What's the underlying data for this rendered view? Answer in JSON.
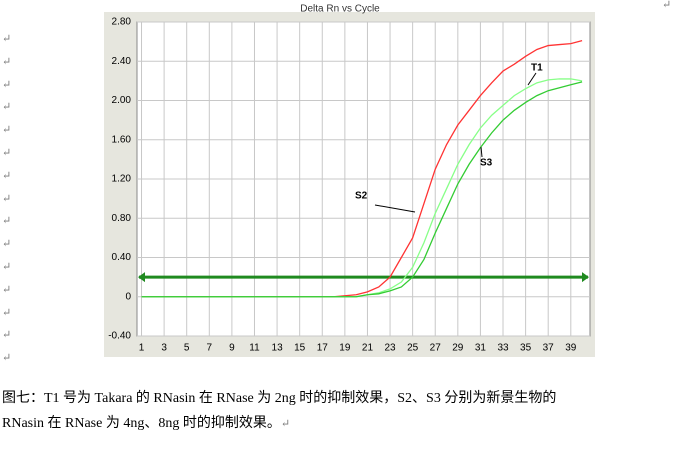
{
  "chart_data": {
    "type": "line",
    "title": "Delta Rn vs Cycle",
    "x": [
      1,
      2,
      3,
      4,
      5,
      6,
      7,
      8,
      9,
      10,
      11,
      12,
      13,
      14,
      15,
      16,
      17,
      18,
      19,
      20,
      21,
      22,
      23,
      24,
      25,
      26,
      27,
      28,
      29,
      30,
      31,
      32,
      33,
      34,
      35,
      36,
      37,
      38,
      39,
      40
    ],
    "series": [
      {
        "name": "S2",
        "color": "#ff3333",
        "values": [
          0,
          0,
          0,
          0,
          0,
          0,
          0,
          0,
          0,
          0,
          0,
          0,
          0,
          0,
          0,
          0,
          0,
          0,
          0.01,
          0.02,
          0.05,
          0.1,
          0.2,
          0.4,
          0.6,
          0.95,
          1.3,
          1.55,
          1.75,
          1.9,
          2.05,
          2.18,
          2.3,
          2.37,
          2.45,
          2.52,
          2.56,
          2.57,
          2.58,
          2.61
        ]
      },
      {
        "name": "T1",
        "color": "#88ff88",
        "values": [
          0,
          0,
          0,
          0,
          0,
          0,
          0,
          0,
          0,
          0,
          0,
          0,
          0,
          0,
          0,
          0,
          0,
          0,
          0,
          0,
          0.02,
          0.04,
          0.08,
          0.15,
          0.3,
          0.55,
          0.85,
          1.1,
          1.35,
          1.55,
          1.72,
          1.85,
          1.95,
          2.05,
          2.12,
          2.18,
          2.21,
          2.22,
          2.22,
          2.2
        ]
      },
      {
        "name": "S3",
        "color": "#33cc33",
        "values": [
          0,
          0,
          0,
          0,
          0,
          0,
          0,
          0,
          0,
          0,
          0,
          0,
          0,
          0,
          0,
          0,
          0,
          0,
          0,
          0,
          0.02,
          0.03,
          0.06,
          0.1,
          0.2,
          0.38,
          0.65,
          0.9,
          1.15,
          1.35,
          1.52,
          1.67,
          1.8,
          1.9,
          1.98,
          2.05,
          2.1,
          2.13,
          2.16,
          2.19
        ]
      }
    ],
    "threshold": 0.2,
    "threshold_color": "#1f8a1f",
    "xlim": [
      0.6,
      40.7
    ],
    "xticks": [
      1,
      3,
      5,
      7,
      9,
      11,
      13,
      15,
      17,
      19,
      21,
      23,
      25,
      27,
      29,
      31,
      33,
      35,
      37,
      39
    ],
    "ylim": [
      -0.4,
      2.8
    ],
    "yticks": [
      {
        "value": -0.4,
        "label": "-0.40"
      },
      0,
      {
        "value": 0.4,
        "label": "0.40"
      },
      {
        "value": 0.8,
        "label": "0.80"
      },
      {
        "value": 1.2,
        "label": "1.20"
      },
      {
        "value": 1.6,
        "label": "1.60"
      },
      {
        "value": 2.0,
        "label": "2.00"
      },
      {
        "value": 2.4,
        "label": "2.40"
      },
      {
        "value": 2.8,
        "label": "2.80"
      }
    ],
    "grid": true
  },
  "caption": [
    "图七：T1 号为 Takara 的 RNasin 在 RNase 为 2ng 时的抑制效果，S2、S3 分别为新景生物的",
    "RNasin 在 RNase 为 4ng、8ng 时的抑制效果。"
  ],
  "paragraph_mark": "↵"
}
